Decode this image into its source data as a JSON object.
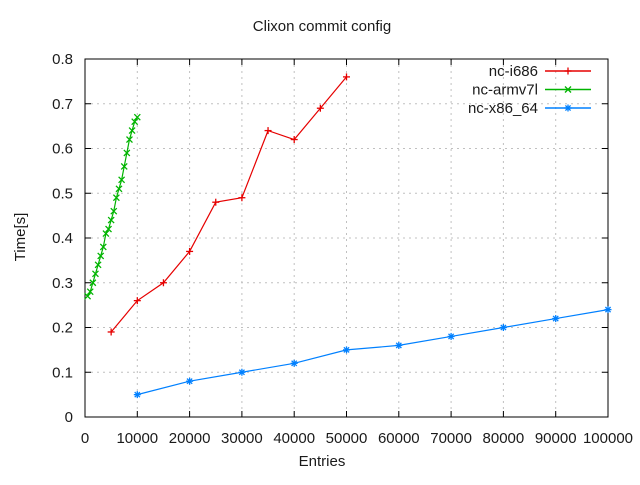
{
  "window": {
    "title": "Clixon commit config"
  },
  "chart_data": {
    "type": "line",
    "title": "Clixon commit config",
    "xlabel": "Entries",
    "ylabel": "Time[s]",
    "xlim": [
      0,
      100000
    ],
    "ylim": [
      0,
      0.8
    ],
    "grid": true,
    "legend_position": "top-right-inside",
    "colors": {
      "grid": "#c0c0c0",
      "border": "#000000",
      "text": "#1a1a1a",
      "background": "#ffffff"
    },
    "xticks": {
      "values": [
        0,
        10000,
        20000,
        30000,
        40000,
        50000,
        60000,
        70000,
        80000,
        90000,
        100000
      ],
      "labels": [
        "0",
        "10000",
        "20000",
        "30000",
        "40000",
        "50000",
        "60000",
        "70000",
        "80000",
        "90000",
        "100000"
      ]
    },
    "yticks": {
      "values": [
        0,
        0.1,
        0.2,
        0.3,
        0.4,
        0.5,
        0.6,
        0.7,
        0.8
      ],
      "labels": [
        "0",
        "0.1",
        "0.2",
        "0.3",
        "0.4",
        "0.5",
        "0.6",
        "0.7",
        "0.8"
      ]
    },
    "series": [
      {
        "name": "nc-i686",
        "color": "#e60000",
        "marker": "plus",
        "x": [
          5000,
          10000,
          15000,
          20000,
          25000,
          30000,
          35000,
          40000,
          45000,
          50000
        ],
        "y": [
          0.19,
          0.26,
          0.3,
          0.37,
          0.48,
          0.49,
          0.64,
          0.62,
          0.69,
          0.76
        ]
      },
      {
        "name": "nc-armv7l",
        "color": "#00b400",
        "marker": "cross",
        "x": [
          500,
          1000,
          1500,
          2000,
          2500,
          3000,
          3500,
          4000,
          4500,
          5000,
          5500,
          6000,
          6500,
          7000,
          7500,
          8000,
          8500,
          9000,
          9500,
          10000
        ],
        "y": [
          0.27,
          0.28,
          0.3,
          0.32,
          0.34,
          0.36,
          0.38,
          0.41,
          0.42,
          0.44,
          0.46,
          0.49,
          0.51,
          0.53,
          0.56,
          0.59,
          0.62,
          0.64,
          0.66,
          0.67
        ]
      },
      {
        "name": "nc-x86_64",
        "color": "#0080ff",
        "marker": "asterisk",
        "x": [
          10000,
          20000,
          30000,
          40000,
          50000,
          60000,
          70000,
          80000,
          90000,
          100000
        ],
        "y": [
          0.05,
          0.08,
          0.1,
          0.12,
          0.15,
          0.16,
          0.18,
          0.2,
          0.22,
          0.24
        ]
      }
    ]
  }
}
